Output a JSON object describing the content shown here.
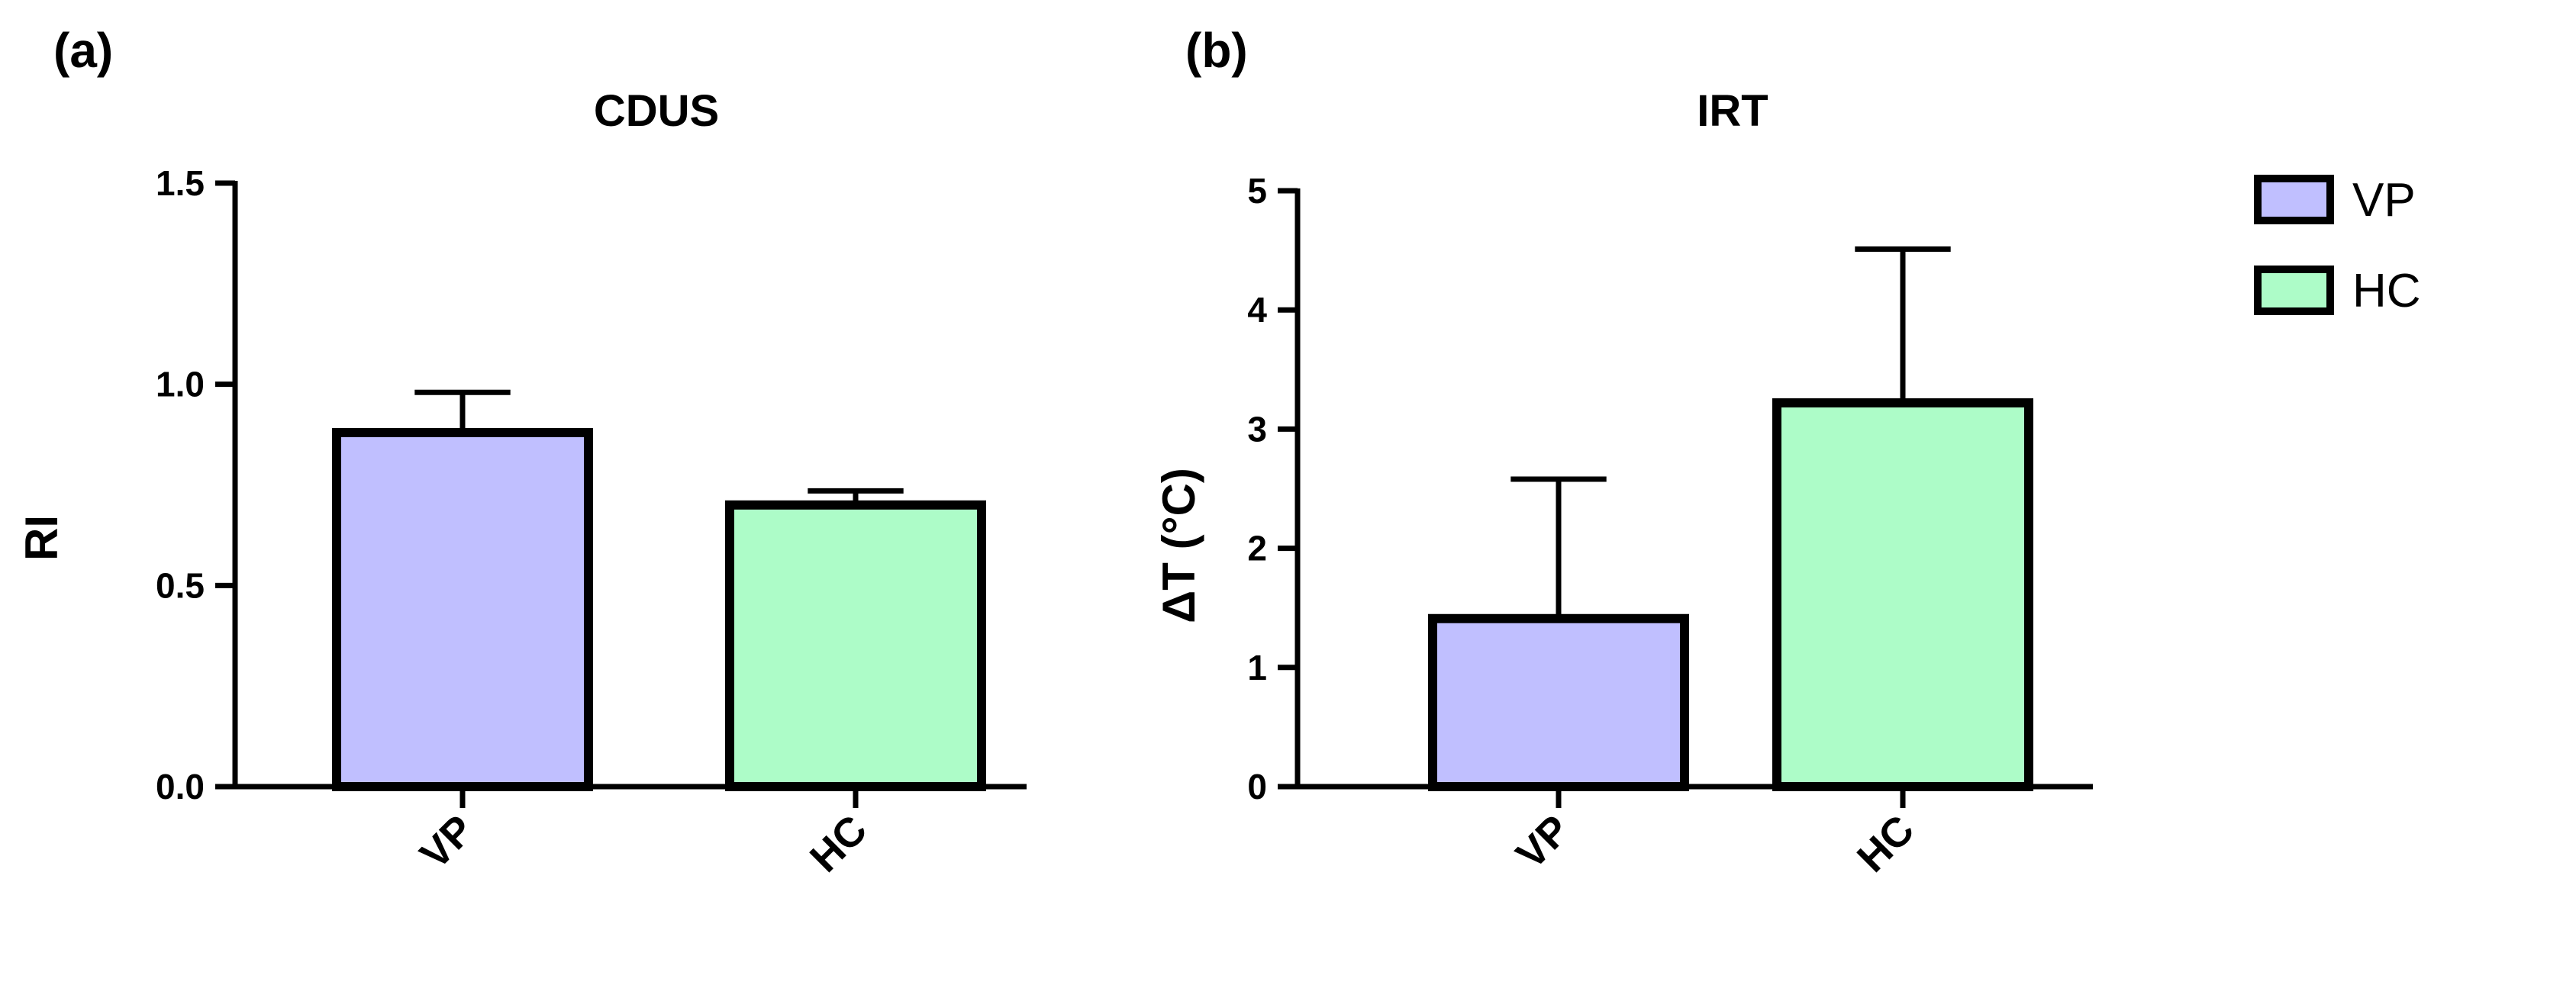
{
  "chart_data": [
    {
      "panel_label": "(a)",
      "type": "bar",
      "title": "CDUS",
      "xlabel": "",
      "ylabel": "RI",
      "ylim": [
        0,
        1.5
      ],
      "yticks": [
        "0.0",
        "0.5",
        "1.0",
        "1.5"
      ],
      "categories": [
        "VP",
        "HC"
      ],
      "values": [
        0.88,
        0.7
      ],
      "error_upper": [
        0.98,
        0.735
      ],
      "colors": [
        "#c0bfff",
        "#adfcc8"
      ],
      "grid": false
    },
    {
      "panel_label": "(b)",
      "type": "bar",
      "title": "IRT",
      "xlabel": "",
      "ylabel": "ΔT (°C)",
      "ylim": [
        0,
        5
      ],
      "yticks": [
        "0",
        "1",
        "2",
        "3",
        "4",
        "5"
      ],
      "categories": [
        "VP",
        "HC"
      ],
      "values": [
        1.41,
        3.22
      ],
      "error_upper": [
        2.58,
        4.51
      ],
      "colors": [
        "#c0bfff",
        "#adfcc8"
      ],
      "grid": false
    }
  ],
  "legend": {
    "placement": "top-right",
    "items": [
      {
        "label": "VP",
        "color": "#c0bfff"
      },
      {
        "label": "HC",
        "color": "#adfcc8"
      }
    ]
  }
}
